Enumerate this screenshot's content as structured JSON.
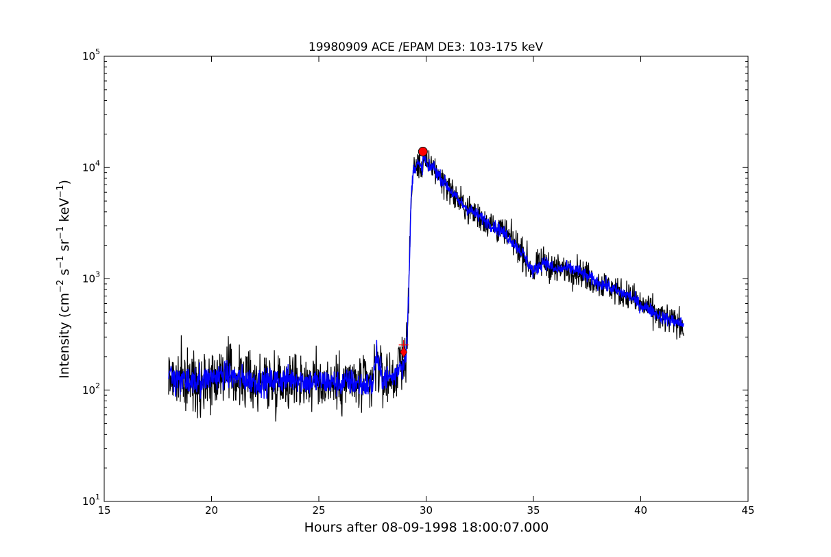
{
  "chart_data": {
    "type": "line",
    "title": "19980909 ACE /EPAM DE3: 103-175 keV",
    "xlabel": "Hours after 08-09-1998 18:00:07.000",
    "ylabel_parts": {
      "base": "Intensity (cm",
      "e1": "−2",
      "s": " s",
      "e2": "−1",
      "sr": " sr",
      "e3": "−1",
      "kev": " keV",
      "e4": "−1",
      "close": ")"
    },
    "xlim": [
      15,
      45
    ],
    "ylim": [
      10,
      100000
    ],
    "yscale": "log",
    "grid": false,
    "xticks": [
      15,
      20,
      25,
      30,
      35,
      40,
      45
    ],
    "xtick_labels": [
      "15",
      "20",
      "25",
      "30",
      "35",
      "40",
      "45"
    ],
    "yticks": [
      10,
      100,
      1000,
      10000,
      100000
    ],
    "ytick_labels": [
      {
        "base": "10",
        "exp": "1"
      },
      {
        "base": "10",
        "exp": "2"
      },
      {
        "base": "10",
        "exp": "3"
      },
      {
        "base": "10",
        "exp": "4"
      },
      {
        "base": "10",
        "exp": "5"
      }
    ],
    "series": [
      {
        "color": "#000000",
        "noise": 0.11,
        "x": [
          18.0,
          18.5,
          19.0,
          19.5,
          20.0,
          20.5,
          21.0,
          21.5,
          22.0,
          22.5,
          23.0,
          23.5,
          24.0,
          24.5,
          25.0,
          25.5,
          26.0,
          26.5,
          27.0,
          27.5,
          27.7,
          27.8,
          28.0,
          28.5,
          28.8,
          28.9,
          29.0,
          29.1,
          29.2,
          29.3,
          29.4,
          29.6,
          29.8,
          29.9,
          30.1,
          30.3,
          30.5,
          31.0,
          31.5,
          32.0,
          32.5,
          33.0,
          33.5,
          34.0,
          34.5,
          35.0,
          35.5,
          36.0,
          36.5,
          37.0,
          37.5,
          38.0,
          38.5,
          39.0,
          39.5,
          40.0,
          40.5,
          41.0,
          41.5,
          42.0
        ],
        "values": [
          135,
          120,
          118,
          122,
          130,
          138,
          132,
          125,
          120,
          118,
          122,
          125,
          128,
          118,
          120,
          118,
          115,
          118,
          112,
          110,
          220,
          150,
          130,
          130,
          175,
          160,
          210,
          260,
          900,
          5500,
          9500,
          11000,
          9500,
          13000,
          9500,
          10500,
          9000,
          6800,
          5000,
          4200,
          3600,
          3100,
          2700,
          2200,
          1700,
          1150,
          1450,
          1200,
          1250,
          1200,
          1050,
          930,
          850,
          760,
          700,
          580,
          520,
          450,
          420,
          390
        ]
      },
      {
        "color": "#0000ff",
        "noise": 0.05,
        "x": [
          18.0,
          18.5,
          19.0,
          19.5,
          20.0,
          20.5,
          21.0,
          21.5,
          22.0,
          22.5,
          23.0,
          23.5,
          24.0,
          24.5,
          25.0,
          25.5,
          26.0,
          26.5,
          27.0,
          27.5,
          27.7,
          27.8,
          28.0,
          28.5,
          28.8,
          28.9,
          29.0,
          29.1,
          29.2,
          29.3,
          29.4,
          29.6,
          29.8,
          29.9,
          30.1,
          30.3,
          30.5,
          31.0,
          31.5,
          32.0,
          32.5,
          33.0,
          33.5,
          34.0,
          34.5,
          35.0,
          35.5,
          36.0,
          36.5,
          37.0,
          37.5,
          38.0,
          38.5,
          39.0,
          39.5,
          40.0,
          40.5,
          41.0,
          41.5,
          42.0
        ],
        "values": [
          135,
          120,
          118,
          122,
          130,
          138,
          132,
          125,
          120,
          118,
          122,
          125,
          128,
          118,
          120,
          118,
          115,
          118,
          112,
          110,
          220,
          150,
          130,
          130,
          175,
          160,
          210,
          260,
          900,
          5500,
          9500,
          11000,
          9500,
          13000,
          9500,
          10500,
          9000,
          6800,
          5000,
          4200,
          3600,
          3100,
          2700,
          2200,
          1700,
          1150,
          1450,
          1200,
          1250,
          1200,
          1050,
          930,
          850,
          760,
          700,
          580,
          520,
          450,
          420,
          390
        ]
      }
    ],
    "markers": [
      {
        "kind": "circle",
        "x": 29.85,
        "y": 13900,
        "color": "#ff0000"
      },
      {
        "kind": "diamond",
        "x": 28.95,
        "y": 220,
        "color": "#ff0000"
      },
      {
        "kind": "plus",
        "x": 28.95,
        "y": 255,
        "color": "#ff0000"
      }
    ]
  }
}
